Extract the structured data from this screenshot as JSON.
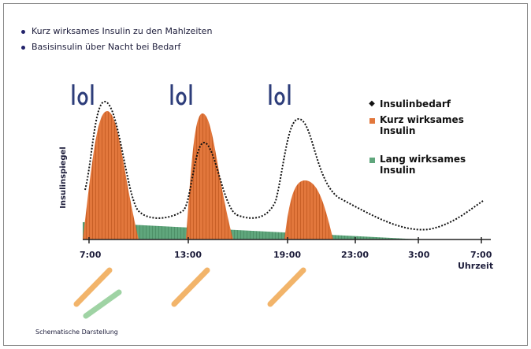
{
  "bullets": [
    "Kurz wirksames Insulin zu den Mahlzeiten",
    "Basisinsulin über Nacht bei Bedarf"
  ],
  "y_axis_label": "Insulinspiegel",
  "x_labels": [
    "7:00",
    "13:00",
    "19:00",
    "23:00",
    "3:00",
    "7:00"
  ],
  "x_axis_label": "Uhrzeit",
  "legend": [
    "Insulinbedarf",
    "Kurz wirksames Insulin",
    "Lang wirksames Insulin"
  ],
  "footnote": "Schematische Darstellung"
}
